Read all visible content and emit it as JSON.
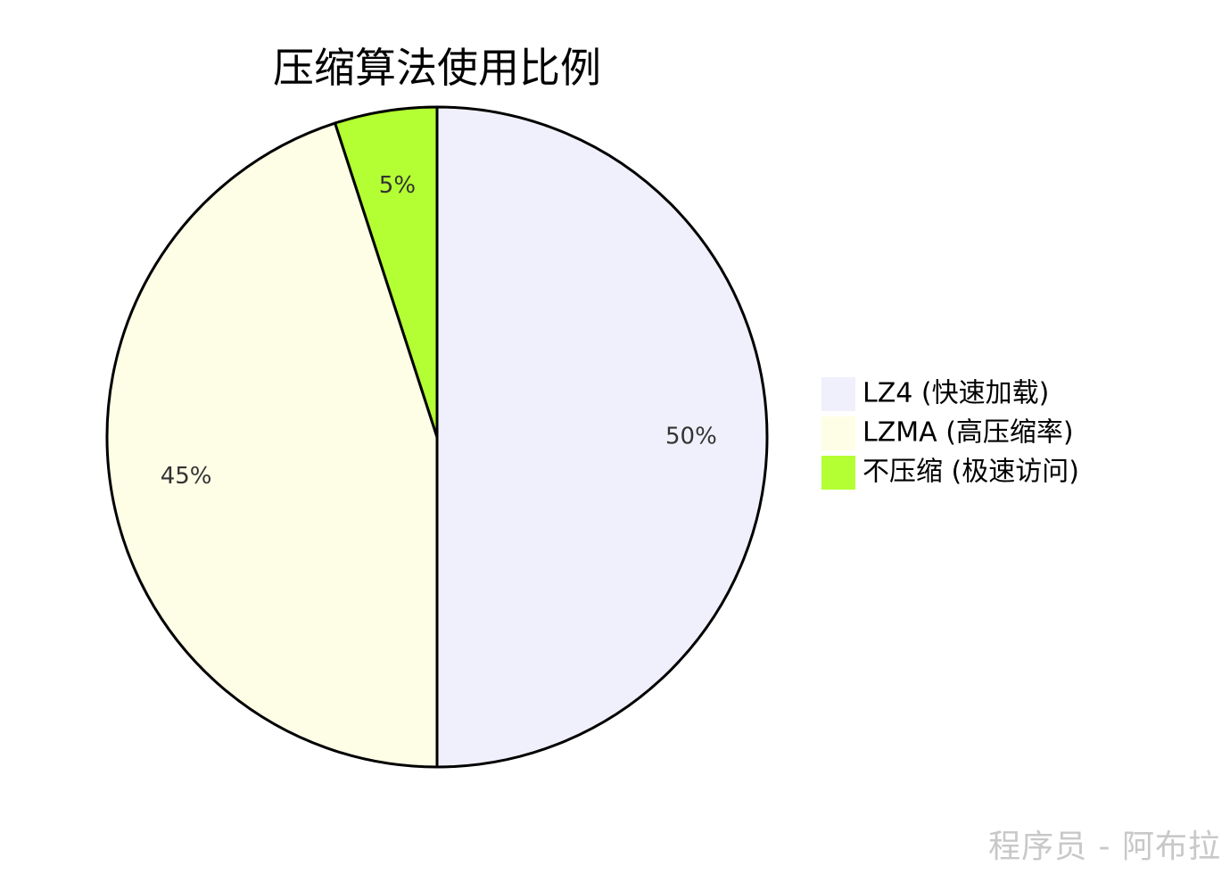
{
  "chart_data": {
    "type": "pie",
    "title": "压缩算法使用比例",
    "categories": [
      "LZ4 (快速加载)",
      "LZMA (高压缩率)",
      "不压缩 (极速访问)"
    ],
    "values": [
      50,
      45,
      5
    ],
    "labels": [
      "50%",
      "45%",
      "5%"
    ],
    "colors": [
      "#f0f0fc",
      "#fefee6",
      "#b3ff33"
    ],
    "legend_position": "right"
  },
  "watermark": "程序员 - 阿布拉"
}
